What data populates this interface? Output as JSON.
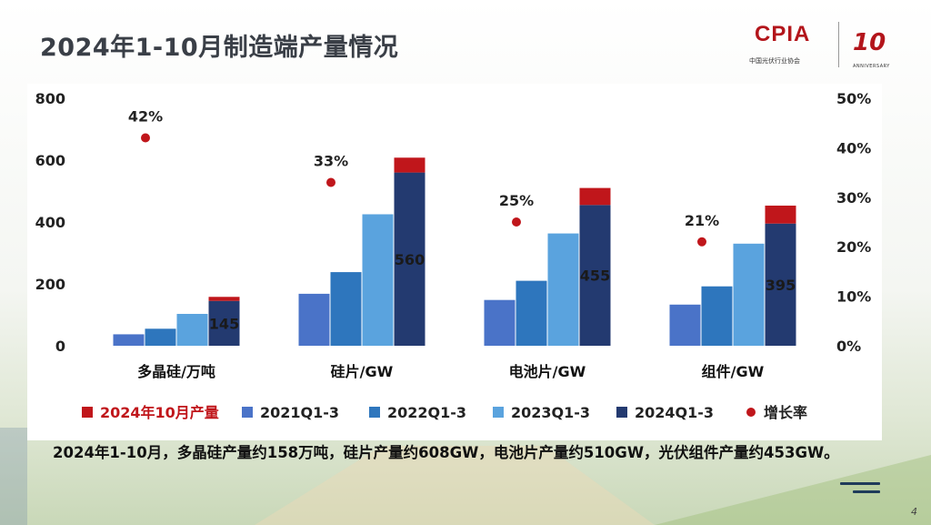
{
  "title": "2024年1-10月制造端产量情况",
  "logo": {
    "cpia_text": "CPIA",
    "cpia_subtitle": "中国光伏行业协会",
    "ten_text": "10",
    "anniversary_text": "ANNIVERSARY"
  },
  "caption": "2024年1-10月，多晶硅产量约158万吨，硅片产量约608GW，电池片产量约510GW，光伏组件产量约453GW。",
  "page_number": "4",
  "colors": {
    "q2021": "#4a73c8",
    "q2022": "#2e76bd",
    "q2023": "#5aa3de",
    "q2024": "#233a70",
    "oct2024": "#c0161b",
    "growth": "#c0161b"
  },
  "chart_data": {
    "type": "bar",
    "categories": [
      "多晶硅/万吨",
      "硅片/GW",
      "电池片/GW",
      "组件/GW"
    ],
    "series": [
      {
        "name": "2021Q1-3",
        "values": [
          37,
          168,
          148,
          133
        ]
      },
      {
        "name": "2022Q1-3",
        "values": [
          55,
          238,
          210,
          192
        ]
      },
      {
        "name": "2023Q1-3",
        "values": [
          103,
          425,
          363,
          330
        ]
      },
      {
        "name": "2024Q1-3",
        "values": [
          145,
          560,
          455,
          395
        ],
        "data_labels": [
          "145",
          "560",
          "455",
          "395"
        ]
      }
    ],
    "stack_on_2024": {
      "name": "2024年10月产量",
      "values": [
        13,
        48,
        55,
        58
      ]
    },
    "growth": {
      "name": "增长率",
      "values": [
        42,
        33,
        25,
        21
      ],
      "labels": [
        "42%",
        "33%",
        "25%",
        "21%"
      ]
    },
    "y_left": {
      "min": 0,
      "max": 800,
      "ticks": [
        "0",
        "200",
        "400",
        "600",
        "800"
      ]
    },
    "y_right": {
      "min": 0,
      "max": 50,
      "ticks": [
        "0%",
        "10%",
        "20%",
        "30%",
        "40%",
        "50%"
      ]
    },
    "legend": [
      "2024年10月产量",
      "2021Q1-3",
      "2022Q1-3",
      "2023Q1-3",
      "2024Q1-3",
      "增长率"
    ],
    "legend_position": "bottom",
    "grid": false
  }
}
